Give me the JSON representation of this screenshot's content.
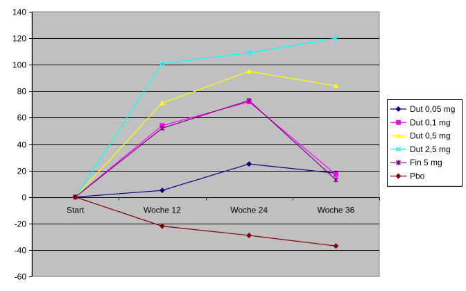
{
  "chart_data": {
    "type": "line",
    "categories": [
      "Start",
      "Woche 12",
      "Woche 24",
      "Woche 36"
    ],
    "ylim": [
      -60,
      140
    ],
    "yticks": [
      -60,
      -40,
      -20,
      0,
      20,
      40,
      60,
      80,
      100,
      120,
      140
    ],
    "grid": "horizontal",
    "plot_background": "#c0c0c0",
    "legend_position": "right",
    "title": "",
    "xlabel": "",
    "ylabel": "",
    "series": [
      {
        "name": "Dut 0,05 mg",
        "values": [
          0,
          5,
          25,
          18
        ],
        "color": "#000080",
        "marker": "diamond"
      },
      {
        "name": "Dut 0,1 mg",
        "values": [
          0,
          54,
          72,
          17
        ],
        "color": "#ff00ff",
        "marker": "square"
      },
      {
        "name": "Dut 0,5 mg",
        "values": [
          0,
          71,
          95,
          84
        ],
        "color": "#ffff00",
        "marker": "triangle"
      },
      {
        "name": "Dut 2,5 mg",
        "values": [
          0,
          101,
          109,
          120
        ],
        "color": "#00ffff",
        "marker": "x"
      },
      {
        "name": "Fin 5 mg",
        "values": [
          0,
          52,
          73,
          13
        ],
        "color": "#800080",
        "marker": "star"
      },
      {
        "name": "Pbo",
        "values": [
          0,
          -22,
          -29,
          -37
        ],
        "color": "#800000",
        "marker": "diamond"
      }
    ]
  }
}
